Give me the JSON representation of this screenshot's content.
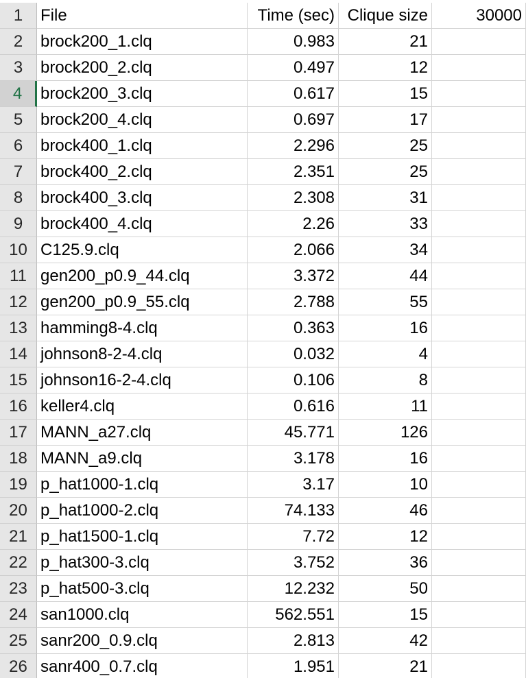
{
  "sheet": {
    "selected_row": 4,
    "rows": [
      {
        "num": "1",
        "a": "File",
        "b": "Time (sec)",
        "c": "Clique size",
        "d": "30000"
      },
      {
        "num": "2",
        "a": "brock200_1.clq",
        "b": "0.983",
        "c": "21",
        "d": ""
      },
      {
        "num": "3",
        "a": "brock200_2.clq",
        "b": "0.497",
        "c": "12",
        "d": ""
      },
      {
        "num": "4",
        "a": "brock200_3.clq",
        "b": "0.617",
        "c": "15",
        "d": ""
      },
      {
        "num": "5",
        "a": "brock200_4.clq",
        "b": "0.697",
        "c": "17",
        "d": ""
      },
      {
        "num": "6",
        "a": "brock400_1.clq",
        "b": "2.296",
        "c": "25",
        "d": ""
      },
      {
        "num": "7",
        "a": "brock400_2.clq",
        "b": "2.351",
        "c": "25",
        "d": ""
      },
      {
        "num": "8",
        "a": "brock400_3.clq",
        "b": "2.308",
        "c": "31",
        "d": ""
      },
      {
        "num": "9",
        "a": "brock400_4.clq",
        "b": "2.26",
        "c": "33",
        "d": ""
      },
      {
        "num": "10",
        "a": "C125.9.clq",
        "b": "2.066",
        "c": "34",
        "d": ""
      },
      {
        "num": "11",
        "a": "gen200_p0.9_44.clq",
        "b": "3.372",
        "c": "44",
        "d": ""
      },
      {
        "num": "12",
        "a": "gen200_p0.9_55.clq",
        "b": "2.788",
        "c": "55",
        "d": ""
      },
      {
        "num": "13",
        "a": "hamming8-4.clq",
        "b": "0.363",
        "c": "16",
        "d": ""
      },
      {
        "num": "14",
        "a": "johnson8-2-4.clq",
        "b": "0.032",
        "c": "4",
        "d": ""
      },
      {
        "num": "15",
        "a": "johnson16-2-4.clq",
        "b": "0.106",
        "c": "8",
        "d": ""
      },
      {
        "num": "16",
        "a": "keller4.clq",
        "b": "0.616",
        "c": "11",
        "d": ""
      },
      {
        "num": "17",
        "a": "MANN_a27.clq",
        "b": "45.771",
        "c": "126",
        "d": ""
      },
      {
        "num": "18",
        "a": "MANN_a9.clq",
        "b": "3.178",
        "c": "16",
        "d": ""
      },
      {
        "num": "19",
        "a": "p_hat1000-1.clq",
        "b": "3.17",
        "c": "10",
        "d": ""
      },
      {
        "num": "20",
        "a": "p_hat1000-2.clq",
        "b": "74.133",
        "c": "46",
        "d": ""
      },
      {
        "num": "21",
        "a": "p_hat1500-1.clq",
        "b": "7.72",
        "c": "12",
        "d": ""
      },
      {
        "num": "22",
        "a": "p_hat300-3.clq",
        "b": "3.752",
        "c": "36",
        "d": ""
      },
      {
        "num": "23",
        "a": "p_hat500-3.clq",
        "b": "12.232",
        "c": "50",
        "d": ""
      },
      {
        "num": "24",
        "a": "san1000.clq",
        "b": "562.551",
        "c": "15",
        "d": ""
      },
      {
        "num": "25",
        "a": "sanr200_0.9.clq",
        "b": "2.813",
        "c": "42",
        "d": ""
      },
      {
        "num": "26",
        "a": "sanr400_0.7.clq",
        "b": "1.951",
        "c": "21",
        "d": ""
      }
    ]
  }
}
